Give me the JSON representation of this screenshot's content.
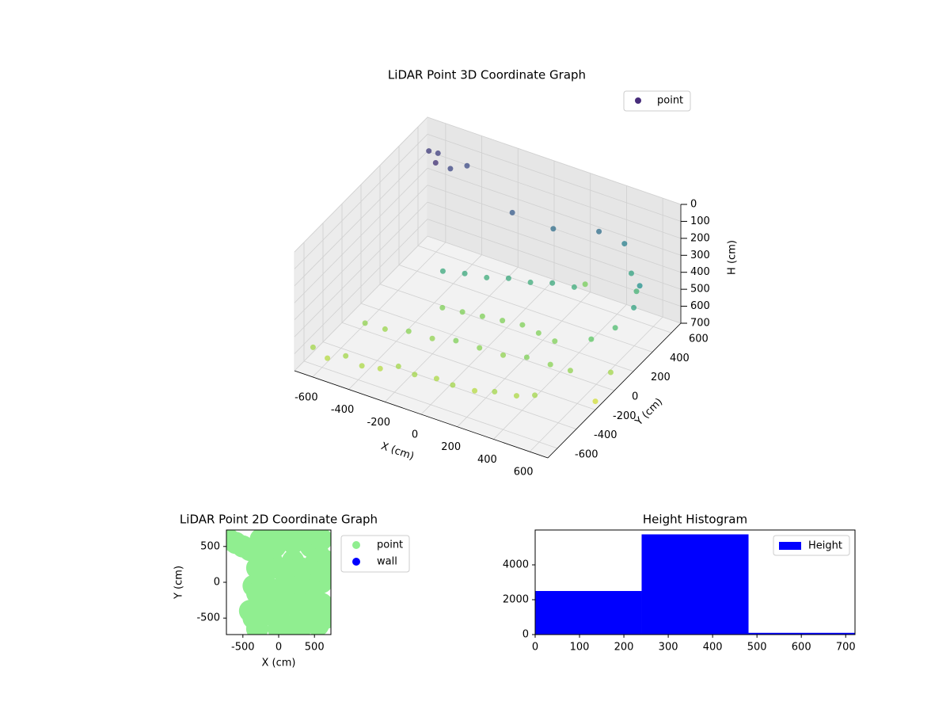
{
  "chart_data": [
    {
      "type": "scatter3d",
      "title": "LiDAR Point 3D Coordinate Graph",
      "xlabel": "X (cm)",
      "ylabel": "Y (cm)",
      "zlabel": "H (cm)",
      "xlim": [
        -700,
        700
      ],
      "ylim": [
        -700,
        700
      ],
      "zlim": [
        700,
        0
      ],
      "xticks": [
        -600,
        -400,
        -200,
        0,
        200,
        400,
        600
      ],
      "yticks": [
        -600,
        -400,
        -200,
        0,
        200,
        400,
        600
      ],
      "zticks": [
        0,
        100,
        200,
        300,
        400,
        500,
        600,
        700
      ],
      "legend": "upper right",
      "colormap": "viridis",
      "grid": true,
      "series": [
        {
          "name": "point",
          "color": "#472d7b",
          "x": [
            -650,
            -560,
            -480,
            -380,
            -300,
            -220,
            -120,
            -20,
            80,
            180,
            280,
            380,
            460,
            -520,
            -420,
            -300,
            -180,
            -60,
            60,
            180,
            300,
            420,
            520,
            -300,
            -200,
            -100,
            0,
            100,
            200,
            300,
            -250,
            -150,
            -50,
            50,
            150,
            250,
            350,
            -550,
            -600,
            -500,
            -450,
            -640,
            300,
            420,
            500,
            560,
            620,
            650,
            600,
            520,
            680,
            700,
            -100,
            100,
            250
          ],
          "y": [
            -600,
            -620,
            -580,
            -600,
            -560,
            -520,
            -540,
            -500,
            -520,
            -480,
            -460,
            -420,
            -380,
            -300,
            -280,
            -260,
            -240,
            -220,
            -200,
            -180,
            -160,
            -140,
            -120,
            100,
            140,
            180,
            220,
            260,
            300,
            340,
            0,
            20,
            40,
            60,
            80,
            60,
            40,
            500,
            620,
            560,
            640,
            600,
            600,
            640,
            560,
            500,
            420,
            300,
            200,
            100,
            0,
            -200,
            450,
            500,
            550
          ],
          "z": [
            600,
            620,
            600,
            610,
            620,
            600,
            600,
            610,
            600,
            620,
            600,
            610,
            600,
            580,
            590,
            570,
            580,
            560,
            570,
            580,
            560,
            570,
            580,
            420,
            420,
            430,
            420,
            430,
            420,
            430,
            560,
            560,
            560,
            560,
            560,
            560,
            560,
            100,
            130,
            150,
            160,
            120,
            250,
            300,
            400,
            450,
            350,
            400,
            480,
            520,
            600,
            650,
            200,
            250,
            550
          ]
        }
      ]
    },
    {
      "type": "scatter",
      "title": "LiDAR Point 2D Coordinate Graph",
      "xlabel": "X (cm)",
      "ylabel": "Y (cm)",
      "xlim": [
        -730,
        730
      ],
      "ylim": [
        -730,
        730
      ],
      "xticks": [
        -500,
        0,
        500
      ],
      "yticks": [
        -500,
        0,
        500
      ],
      "legend": "outside right",
      "series": [
        {
          "name": "point",
          "color": "#90ee90",
          "x": [
            -700,
            -600,
            -500,
            -400,
            -300,
            -250,
            -200,
            -100,
            -50,
            0,
            50,
            100,
            150,
            200,
            250,
            300,
            350,
            400,
            450,
            500,
            550,
            600,
            650,
            -300,
            -250,
            -200,
            -100,
            0,
            100,
            200,
            300,
            400,
            500,
            600,
            -350,
            -300,
            -200,
            -100,
            0,
            100,
            200,
            300,
            400,
            500,
            600,
            -400,
            -350,
            -250,
            -150,
            0,
            150,
            300,
            450,
            600,
            -300,
            0,
            300,
            550,
            650,
            100,
            300,
            500,
            650
          ],
          "y": [
            600,
            550,
            500,
            450,
            400,
            600,
            650,
            680,
            500,
            600,
            650,
            680,
            600,
            550,
            650,
            600,
            620,
            680,
            500,
            550,
            400,
            600,
            300,
            200,
            100,
            0,
            300,
            200,
            100,
            300,
            200,
            100,
            250,
            150,
            -50,
            -150,
            -100,
            -200,
            -100,
            0,
            -150,
            -50,
            -200,
            -100,
            0,
            -400,
            -500,
            -300,
            -450,
            -400,
            -300,
            -500,
            -400,
            -300,
            -650,
            -650,
            -650,
            -600,
            -500,
            -600,
            -300,
            -500,
            150
          ]
        },
        {
          "name": "wall",
          "color": "#0000ff",
          "x": [],
          "y": []
        }
      ]
    },
    {
      "type": "histogram",
      "title": "Height Histogram",
      "bins": [
        0,
        240,
        481,
        721
      ],
      "values": [
        2500,
        5750,
        100
      ],
      "xlim": [
        0,
        721
      ],
      "ylim": [
        0,
        6000
      ],
      "xticks": [
        0,
        100,
        200,
        300,
        400,
        500,
        600,
        700
      ],
      "yticks": [
        0,
        2000,
        4000
      ],
      "series_name": "Height",
      "color": "#0000ff",
      "legend": "upper right"
    }
  ]
}
